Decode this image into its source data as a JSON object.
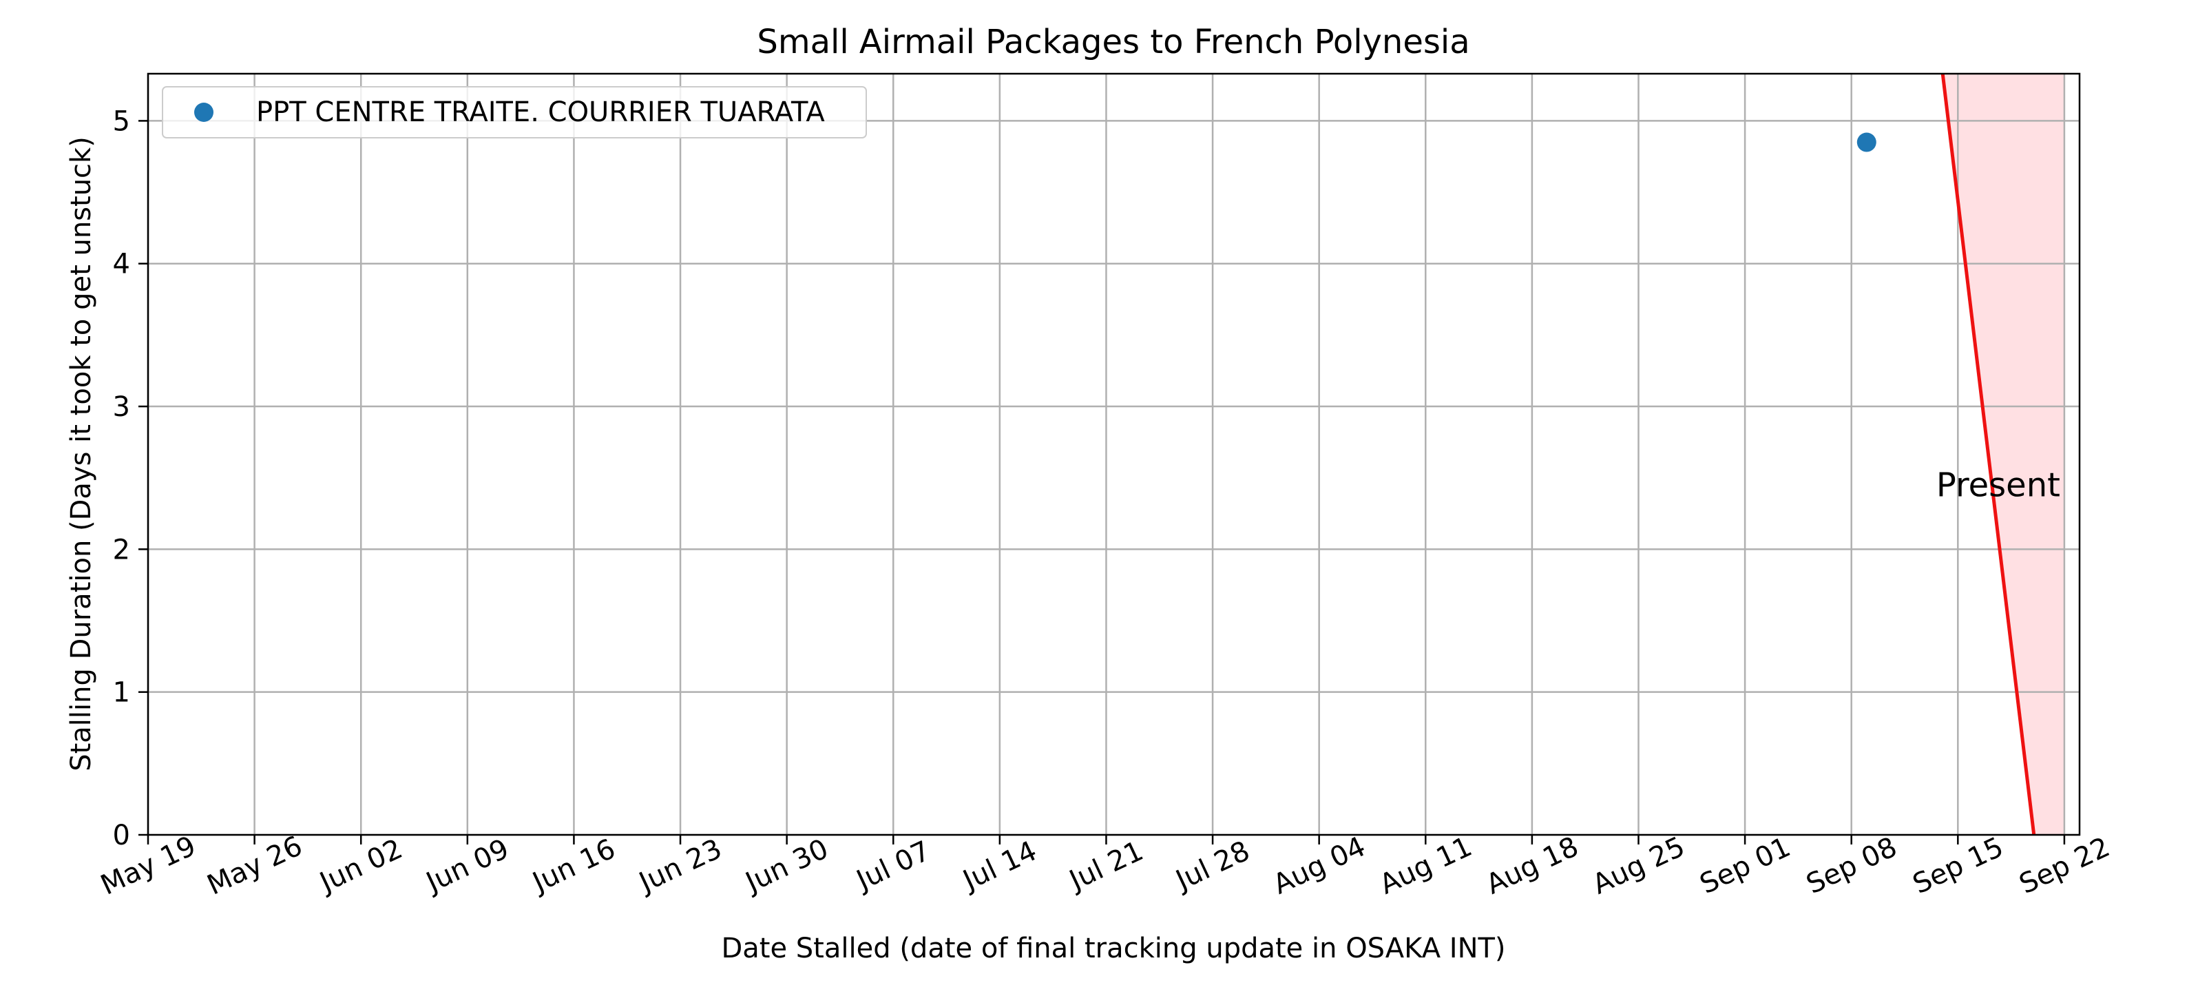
{
  "chart_data": {
    "type": "scatter",
    "title": "Small Airmail Packages to French Polynesia",
    "xlabel": "Date Stalled (date of final tracking update in OSAKA INT)",
    "ylabel": "Stalling Duration (Days it took to get unstuck)",
    "x_tick_labels": [
      "May 19",
      "May 26",
      "Jun 02",
      "Jun 09",
      "Jun 16",
      "Jun 23",
      "Jun 30",
      "Jul 07",
      "Jul 14",
      "Jul 21",
      "Jul 28",
      "Aug 04",
      "Aug 11",
      "Aug 18",
      "Aug 25",
      "Sep 01",
      "Sep 08",
      "Sep 15",
      "Sep 22"
    ],
    "x_tick_dates": [
      "2024-05-19",
      "2024-05-26",
      "2024-06-02",
      "2024-06-09",
      "2024-06-16",
      "2024-06-23",
      "2024-06-30",
      "2024-07-07",
      "2024-07-14",
      "2024-07-21",
      "2024-07-28",
      "2024-08-04",
      "2024-08-11",
      "2024-08-18",
      "2024-08-25",
      "2024-09-01",
      "2024-09-08",
      "2024-09-15",
      "2024-09-22"
    ],
    "y_tick_labels": [
      "0",
      "1",
      "2",
      "3",
      "4",
      "5"
    ],
    "xlim": [
      "2024-05-19",
      "2024-09-23"
    ],
    "ylim": [
      0,
      5.33
    ],
    "grid": true,
    "legend_position": "upper-left",
    "series": [
      {
        "name": "PPT CENTRE TRAITE. COURRIER TUARATA",
        "color": "#1f77b4",
        "points": [
          {
            "x": "2024-09-09",
            "y": 4.85
          }
        ]
      }
    ],
    "present_marker": {
      "label": "Present",
      "color": "#ee1111",
      "shade_color": "#ffe0e3",
      "line_top": {
        "x": "2024-09-14",
        "y": 5.33
      },
      "line_bottom": {
        "x": "2024-09-20",
        "y": 0
      },
      "shade_end": "2024-09-22"
    }
  }
}
